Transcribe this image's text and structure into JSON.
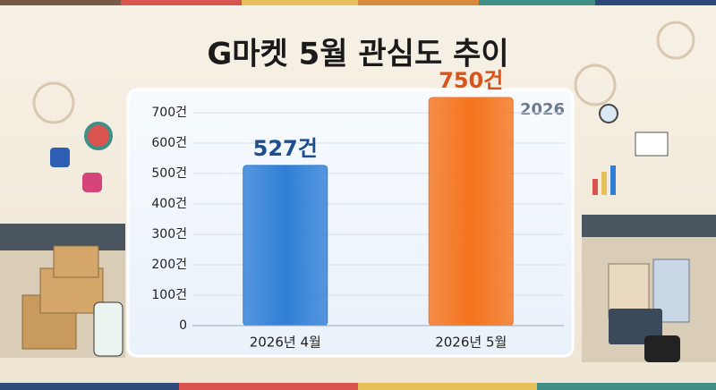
{
  "chart_data": {
    "type": "bar",
    "title": "G마켓 5월 관심도 추이",
    "annotation": "2026",
    "categories": [
      "2026년 4월",
      "2026년 5월"
    ],
    "values": [
      527,
      750
    ],
    "value_labels": [
      "527건",
      "750건"
    ],
    "colors": [
      "#2f7fd6",
      "#f5731c"
    ],
    "label_colors": [
      "#1f4e8c",
      "#d9541a"
    ],
    "ylim": [
      0,
      750
    ],
    "yticks": [
      0,
      {
        "value": 100,
        "label": "100건"
      },
      {
        "value": 200,
        "label": "200건"
      },
      {
        "value": 300,
        "label": "300건"
      },
      {
        "value": 400,
        "label": "400건"
      },
      {
        "value": 500,
        "label": "500건"
      },
      {
        "value": 600,
        "label": "600건"
      },
      {
        "value": 700,
        "label": "700건"
      }
    ],
    "grid": true
  }
}
